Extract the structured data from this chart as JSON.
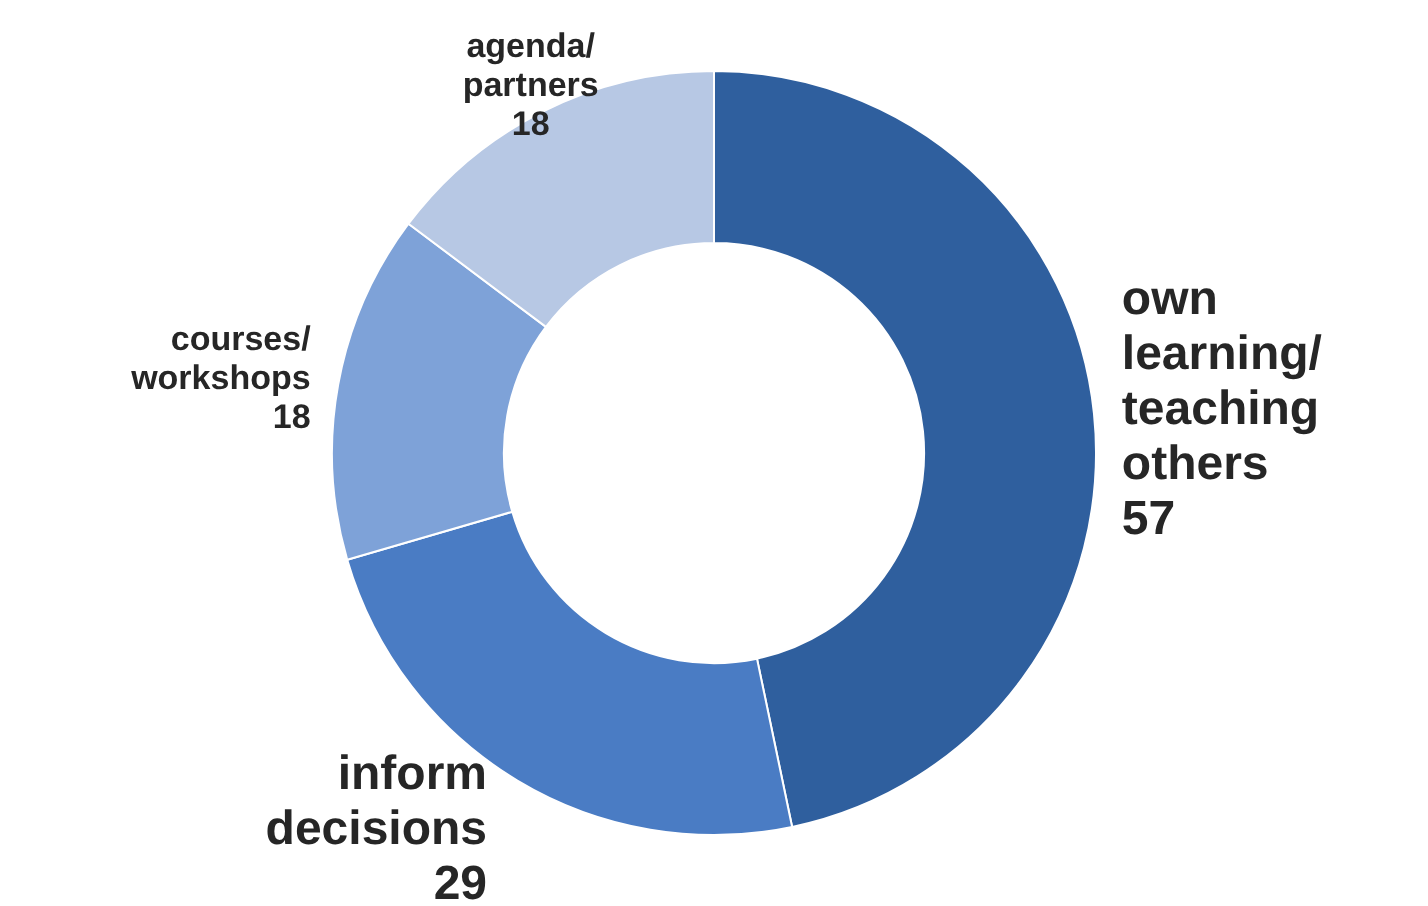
{
  "chart_data": {
    "type": "donut",
    "categories": [
      "own\nlearning/\nteaching\nothers",
      "inform\ndecisions",
      "courses/\nworkshops",
      "agenda/\npartners"
    ],
    "values": [
      57,
      29,
      18,
      18
    ],
    "colors": [
      "#2f5f9e",
      "#4a7cc4",
      "#7ea2d8",
      "#b7c8e4"
    ],
    "data_labels": true,
    "legend": false
  }
}
